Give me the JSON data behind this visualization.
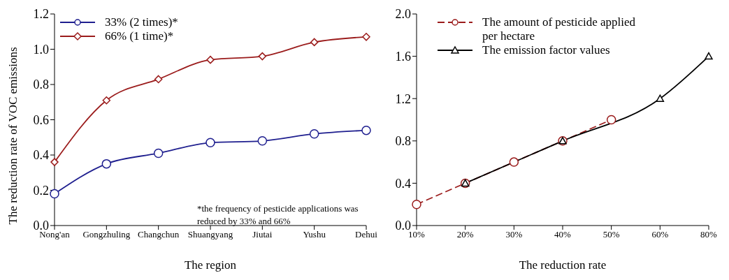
{
  "chart_data": [
    {
      "type": "line",
      "xlabel": "The region",
      "ylabel": "The reduction rate of VOC emissions",
      "categories": [
        "Nong'an",
        "Gongzhuling",
        "Changchun",
        "Shuangyang",
        "Jiutai",
        "Yushu",
        "Dehui"
      ],
      "series": [
        {
          "name": "33% (2 times)*",
          "color": "#1f1f8f",
          "marker": "circle",
          "values": [
            0.18,
            0.35,
            0.41,
            0.47,
            0.48,
            0.52,
            0.54
          ]
        },
        {
          "name": "66% (1 time)*",
          "color": "#9b1c1c",
          "marker": "diamond",
          "values": [
            0.36,
            0.71,
            0.83,
            0.94,
            0.96,
            1.04,
            1.07
          ]
        }
      ],
      "ylim": [
        0,
        1.2
      ],
      "yticks": [
        {
          "value": 0,
          "label": "0.0"
        },
        {
          "value": 0.2,
          "label": "0.2"
        },
        {
          "value": 0.4,
          "label": "0.4"
        },
        {
          "value": 0.6,
          "label": "0.6"
        },
        {
          "value": 0.8,
          "label": "0.8"
        },
        {
          "value": 1,
          "label": "1.0"
        },
        {
          "value": 1.2,
          "label": "1.2"
        }
      ],
      "legend": "top left",
      "line_style": "solid",
      "annotations": [
        "*the frequency of pesticide applications was reduced by 33% and 66%"
      ]
    },
    {
      "type": "line",
      "xlabel": "The reduction rate",
      "categories": [
        "10%",
        "20%",
        "30%",
        "40%",
        "50%",
        "60%",
        "80%"
      ],
      "series": [
        {
          "name": "The amount of pesticide applied per hectare",
          "color": "#9b1c1c",
          "marker": "circle",
          "line_style": "dashed",
          "values": [
            0.2,
            0.4,
            0.6,
            0.8,
            1.0,
            null,
            null
          ]
        },
        {
          "name": "The  emission factor values",
          "color": "#000000",
          "marker": "triangle",
          "line_style": "solid",
          "values": [
            null,
            0.4,
            null,
            0.8,
            null,
            1.2,
            1.6
          ]
        }
      ],
      "ylim": [
        0,
        2
      ],
      "yticks": [
        {
          "value": 0,
          "label": "0.0"
        },
        {
          "value": 0.4,
          "label": "0.4"
        },
        {
          "value": 0.8,
          "label": "0.8"
        },
        {
          "value": 1.2,
          "label": "1.2"
        },
        {
          "value": 1.6,
          "label": "1.6"
        },
        {
          "value": 2,
          "label": "2.0"
        }
      ],
      "legend": "top left"
    }
  ]
}
